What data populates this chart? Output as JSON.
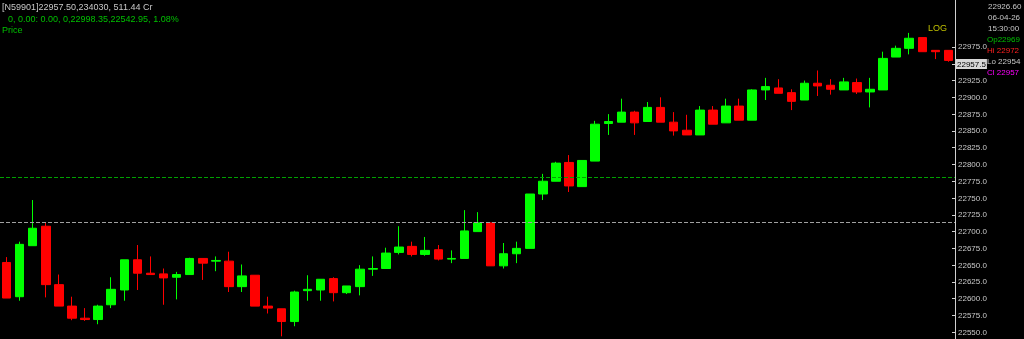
{
  "chart_data": {
    "type": "candlestick",
    "annotations": [
      "[N59901]22957.50,234030, 511.44 Cr",
      "0, 0.00: 0.00, 0,22998.35,22542.95, 1.08%",
      "Price",
      "LOG",
      "22926.60",
      "06-04-26",
      "15:30:00",
      "Op22969",
      "Hi 22972",
      "Lo 22954",
      "Cl 22957",
      "22957.5"
    ],
    "categories": [
      null,
      null,
      null,
      null,
      null,
      null,
      null,
      null,
      null,
      null,
      null,
      null,
      null,
      null,
      null,
      null,
      null,
      null,
      null,
      null,
      null,
      null,
      null,
      null,
      null,
      null,
      null,
      null,
      null,
      null,
      null,
      null,
      null,
      null,
      null,
      null,
      null,
      null,
      null,
      null,
      null,
      null,
      null,
      null,
      null,
      null,
      null,
      null,
      null,
      null,
      null,
      null,
      null,
      null,
      null,
      null,
      null,
      null,
      null,
      null,
      null,
      null,
      null,
      null,
      null,
      null,
      null,
      null,
      null,
      null,
      null,
      null,
      null
    ],
    "ohlc": [
      [
        22654,
        22662,
        22601,
        22601
      ],
      [
        22603,
        22685,
        22597,
        22681
      ],
      [
        22679,
        22747,
        22679,
        22705
      ],
      [
        22708,
        22713,
        22602,
        22621
      ],
      [
        22621,
        22636,
        22589,
        22589
      ],
      [
        22589,
        22603,
        22568,
        22571
      ],
      [
        22571,
        22586,
        22567,
        22569
      ],
      [
        22569,
        22591,
        22562,
        22589
      ],
      [
        22591,
        22632,
        22586,
        22614
      ],
      [
        22613,
        22658,
        22597,
        22658
      ],
      [
        22658,
        22680,
        22613,
        22638
      ],
      [
        22638,
        22663,
        22636,
        22636
      ],
      [
        22637,
        22645,
        22591,
        22631
      ],
      [
        22632,
        22640,
        22599,
        22636
      ],
      [
        22636,
        22661,
        22636,
        22660
      ],
      [
        22660,
        22660,
        22628,
        22653
      ],
      [
        22656,
        22663,
        22641,
        22657
      ],
      [
        22656,
        22670,
        22610,
        22618
      ],
      [
        22618,
        22651,
        22610,
        22634
      ],
      [
        22635,
        22635,
        22589,
        22589
      ],
      [
        22589,
        22603,
        22578,
        22586
      ],
      [
        22585,
        22585,
        22544,
        22566
      ],
      [
        22566,
        22612,
        22559,
        22610
      ],
      [
        22612,
        22635,
        22597,
        22614
      ],
      [
        22613,
        22629,
        22597,
        22629
      ],
      [
        22630,
        22632,
        22596,
        22609
      ],
      [
        22609,
        22619,
        22607,
        22619
      ],
      [
        22618,
        22650,
        22605,
        22644
      ],
      [
        22644,
        22663,
        22634,
        22645
      ],
      [
        22645,
        22676,
        22645,
        22668
      ],
      [
        22669,
        22708,
        22666,
        22677
      ],
      [
        22678,
        22685,
        22663,
        22666
      ],
      [
        22666,
        22692,
        22664,
        22672
      ],
      [
        22673,
        22680,
        22657,
        22659
      ],
      [
        22659,
        22672,
        22653,
        22660
      ],
      [
        22660,
        22732,
        22660,
        22701
      ],
      [
        22700,
        22729,
        22700,
        22713
      ],
      [
        22713,
        22713,
        22649,
        22649
      ],
      [
        22649,
        22683,
        22645,
        22667
      ],
      [
        22667,
        22685,
        22653,
        22675
      ],
      [
        22675,
        22756,
        22675,
        22756
      ],
      [
        22756,
        22786,
        22747,
        22775
      ],
      [
        22775,
        22804,
        22775,
        22802
      ],
      [
        22803,
        22814,
        22759,
        22768
      ],
      [
        22767,
        22806,
        22767,
        22806
      ],
      [
        22805,
        22865,
        22805,
        22860
      ],
      [
        22861,
        22875,
        22844,
        22864
      ],
      [
        22863,
        22898,
        22863,
        22878
      ],
      [
        22878,
        22880,
        22844,
        22862
      ],
      [
        22864,
        22893,
        22864,
        22885
      ],
      [
        22885,
        22900,
        22863,
        22863
      ],
      [
        22863,
        22878,
        22843,
        22850
      ],
      [
        22851,
        22874,
        22844,
        22844
      ],
      [
        22844,
        22887,
        22844,
        22881
      ],
      [
        22881,
        22887,
        22860,
        22860
      ],
      [
        22862,
        22898,
        22862,
        22887
      ],
      [
        22887,
        22898,
        22866,
        22866
      ],
      [
        22866,
        22912,
        22866,
        22911
      ],
      [
        22911,
        22929,
        22896,
        22916
      ],
      [
        22914,
        22927,
        22906,
        22906
      ],
      [
        22907,
        22912,
        22881,
        22894
      ],
      [
        22896,
        22925,
        22896,
        22921
      ],
      [
        22921,
        22940,
        22902,
        22917
      ],
      [
        22918,
        22927,
        22904,
        22912
      ],
      [
        22911,
        22929,
        22911,
        22923
      ],
      [
        22922,
        22928,
        22905,
        22908
      ],
      [
        22908,
        22929,
        22885,
        22912
      ],
      [
        22911,
        22968,
        22911,
        22958
      ],
      [
        22960,
        22977,
        22960,
        22973
      ],
      [
        22973,
        22996,
        22964,
        22988
      ],
      [
        22989,
        22989,
        22968,
        22968
      ],
      [
        22970,
        22970,
        22957,
        22968
      ],
      [
        22970,
        22970,
        22953,
        22955
      ]
    ],
    "colors": [
      "#ff0000",
      "#00ff00",
      "#00ff00",
      "#ff0000",
      "#ff0000",
      "#ff0000",
      "#ff0000",
      "#00ff00",
      "#00ff00",
      "#00ff00",
      "#ff0000",
      "#ff0000",
      "#ff0000",
      "#00ff00",
      "#00ff00",
      "#ff0000",
      "#00ff00",
      "#ff0000",
      "#00ff00",
      "#ff0000",
      "#ff0000",
      "#ff0000",
      "#00ff00",
      "#00ff00",
      "#00ff00",
      "#ff0000",
      "#00ff00",
      "#00ff00",
      "#00ff00",
      "#00ff00",
      "#00ff00",
      "#ff0000",
      "#00ff00",
      "#ff0000",
      "#00ff00",
      "#00ff00",
      "#00ff00",
      "#ff0000",
      "#00ff00",
      "#00ff00",
      "#00ff00",
      "#00ff00",
      "#00ff00",
      "#ff0000",
      "#00ff00",
      "#00ff00",
      "#00ff00",
      "#00ff00",
      "#ff0000",
      "#00ff00",
      "#ff0000",
      "#ff0000",
      "#ff0000",
      "#00ff00",
      "#ff0000",
      "#00ff00",
      "#ff0000",
      "#00ff00",
      "#00ff00",
      "#ff0000",
      "#ff0000",
      "#00ff00",
      "#ff0000",
      "#ff0000",
      "#00ff00",
      "#ff0000",
      "#00ff00",
      "#00ff00",
      "#00ff00",
      "#00ff00",
      "#ff0000",
      "#ff0000",
      "#ff0000"
    ],
    "ylim": [
      22540,
      23045
    ],
    "yticks": [
      {
        "value": 22550,
        "label": "22550.0"
      },
      {
        "value": 22575,
        "label": "22575.0"
      },
      {
        "value": 22600,
        "label": "22600.0"
      },
      {
        "value": 22625,
        "label": "22625.0"
      },
      {
        "value": 22650,
        "label": "22650.0"
      },
      {
        "value": 22675,
        "label": "22675.0"
      },
      {
        "value": 22700,
        "label": "22700.0"
      },
      {
        "value": 22725,
        "label": "22725.0"
      },
      {
        "value": 22750,
        "label": "22750.0"
      },
      {
        "value": 22775,
        "label": "22775.0"
      },
      {
        "value": 22800,
        "label": "22800.0"
      },
      {
        "value": 22825,
        "label": "22825.0"
      },
      {
        "value": 22850,
        "label": "22850.0"
      },
      {
        "value": 22875,
        "label": "22875.0"
      },
      {
        "value": 22900,
        "label": "22900.0"
      },
      {
        "value": 22925,
        "label": "22925.0"
      },
      {
        "value": 22950,
        "label": null
      },
      {
        "value": 22975,
        "label": "22975.0"
      }
    ],
    "ref_lines": [
      {
        "axis": "y",
        "value": 22781,
        "color": "#00a000",
        "line_style": "dashed"
      },
      {
        "axis": "y",
        "value": 22714,
        "color": "#a0a0a0",
        "line_style": "dashed"
      }
    ],
    "tick_labels": "y",
    "grid": false
  }
}
